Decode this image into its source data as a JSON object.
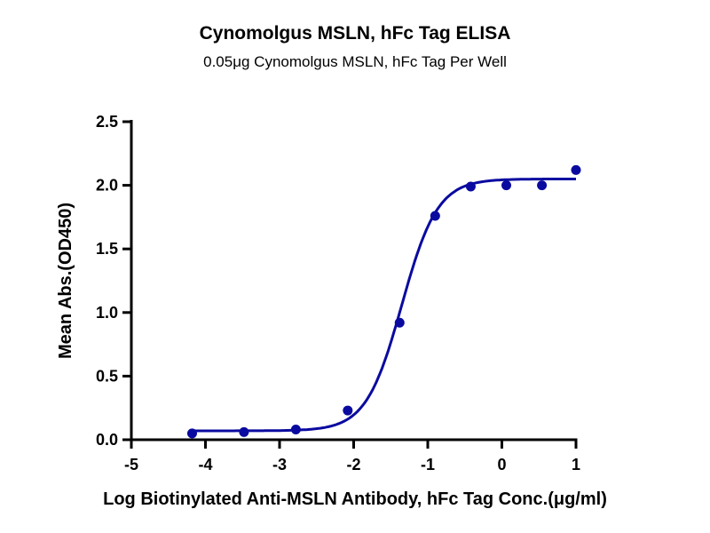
{
  "chart_data": {
    "type": "scatter",
    "title": "Cynomolgus MSLN, hFc Tag ELISA",
    "subtitle": "0.05μg Cynomolgus MSLN, hFc Tag Per Well",
    "xlabel": "Log Biotinylated Anti-MSLN Antibody, hFc Tag Conc.(μg/ml)",
    "ylabel": "Mean Abs.(OD450)",
    "xlim": [
      -5,
      1
    ],
    "ylim": [
      0,
      2.5
    ],
    "xticks": [
      "-5",
      "-4",
      "-3",
      "-2",
      "-1",
      "0",
      "1"
    ],
    "yticks": [
      "0.0",
      "0.5",
      "1.0",
      "1.5",
      "2.0",
      "2.5"
    ],
    "grid": false,
    "color": "#0a0aa0",
    "points": {
      "x": [
        -4.18,
        -3.48,
        -2.78,
        -2.08,
        -1.38,
        -0.9,
        -0.42,
        0.06,
        0.54,
        1.0
      ],
      "y": [
        0.05,
        0.06,
        0.08,
        0.23,
        0.92,
        1.76,
        1.99,
        2.0,
        2.0,
        2.12
      ]
    },
    "fit": {
      "model": "4PL",
      "bottom": 0.07,
      "top": 2.05,
      "logEC50": -1.35,
      "hill": 1.8,
      "x_range": [
        -4.18,
        1.0
      ]
    }
  }
}
